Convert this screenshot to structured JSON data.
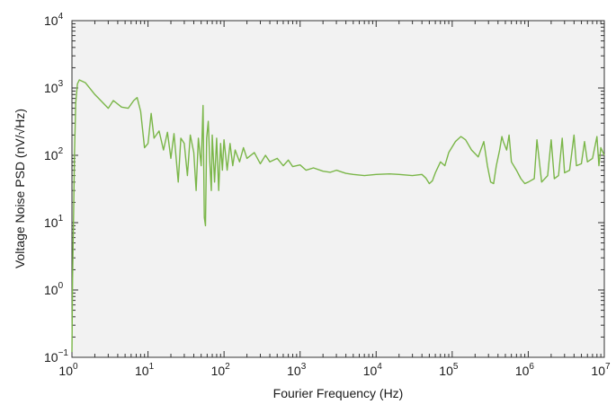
{
  "chart_data": {
    "type": "line",
    "title": "",
    "xlabel": "Fourier Frequency (Hz)",
    "ylabel": "Voltage Noise PSD (nV/√Hz)",
    "x_scale": "log",
    "y_scale": "log",
    "xlim": [
      1,
      10000000
    ],
    "ylim": [
      0.1,
      10000
    ],
    "grid": false,
    "legend": "none",
    "x_tick_labels": [
      {
        "base": "10",
        "exp": "0"
      },
      {
        "base": "10",
        "exp": "1"
      },
      {
        "base": "10",
        "exp": "2"
      },
      {
        "base": "10",
        "exp": "3"
      },
      {
        "base": "10",
        "exp": "4"
      },
      {
        "base": "10",
        "exp": "5"
      },
      {
        "base": "10",
        "exp": "6"
      },
      {
        "base": "10",
        "exp": "7"
      }
    ],
    "y_tick_labels": [
      {
        "base": "10",
        "exp": "−1"
      },
      {
        "base": "10",
        "exp": "0"
      },
      {
        "base": "10",
        "exp": "1"
      },
      {
        "base": "10",
        "exp": "2"
      },
      {
        "base": "10",
        "exp": "3"
      },
      {
        "base": "10",
        "exp": "4"
      }
    ],
    "series": [
      {
        "color": "#7ab648",
        "points": [
          [
            1.0,
            0.12
          ],
          [
            1.02,
            1.5
          ],
          [
            1.05,
            12
          ],
          [
            1.08,
            100
          ],
          [
            1.12,
            600
          ],
          [
            1.18,
            1150
          ],
          [
            1.25,
            1320
          ],
          [
            1.5,
            1200
          ],
          [
            2.0,
            800
          ],
          [
            3.0,
            500
          ],
          [
            3.5,
            650
          ],
          [
            4.5,
            520
          ],
          [
            5.5,
            500
          ],
          [
            6.5,
            650
          ],
          [
            7.2,
            720
          ],
          [
            8.0,
            450
          ],
          [
            9.0,
            130
          ],
          [
            10,
            150
          ],
          [
            11,
            420
          ],
          [
            12,
            180
          ],
          [
            14,
            230
          ],
          [
            16,
            120
          ],
          [
            18,
            220
          ],
          [
            20,
            90
          ],
          [
            22,
            210
          ],
          [
            25,
            40
          ],
          [
            27,
            180
          ],
          [
            30,
            150
          ],
          [
            33,
            50
          ],
          [
            36,
            200
          ],
          [
            40,
            110
          ],
          [
            43,
            30
          ],
          [
            46,
            180
          ],
          [
            50,
            70
          ],
          [
            53,
            550
          ],
          [
            55,
            12
          ],
          [
            57,
            9
          ],
          [
            59,
            180
          ],
          [
            62,
            320
          ],
          [
            65,
            80
          ],
          [
            68,
            30
          ],
          [
            70,
            200
          ],
          [
            75,
            40
          ],
          [
            80,
            180
          ],
          [
            85,
            30
          ],
          [
            90,
            150
          ],
          [
            95,
            60
          ],
          [
            100,
            170
          ],
          [
            110,
            60
          ],
          [
            120,
            150
          ],
          [
            130,
            70
          ],
          [
            140,
            120
          ],
          [
            160,
            80
          ],
          [
            180,
            130
          ],
          [
            200,
            90
          ],
          [
            250,
            110
          ],
          [
            300,
            75
          ],
          [
            350,
            100
          ],
          [
            400,
            80
          ],
          [
            500,
            90
          ],
          [
            600,
            70
          ],
          [
            700,
            85
          ],
          [
            800,
            68
          ],
          [
            1000,
            72
          ],
          [
            1200,
            60
          ],
          [
            1500,
            65
          ],
          [
            2000,
            58
          ],
          [
            2500,
            56
          ],
          [
            3000,
            60
          ],
          [
            4000,
            54
          ],
          [
            5000,
            52
          ],
          [
            7000,
            50
          ],
          [
            10000,
            52
          ],
          [
            15000,
            53
          ],
          [
            20000,
            52
          ],
          [
            30000,
            50
          ],
          [
            40000,
            52
          ],
          [
            45000,
            46
          ],
          [
            50000,
            38
          ],
          [
            55000,
            42
          ],
          [
            60000,
            55
          ],
          [
            70000,
            80
          ],
          [
            80000,
            70
          ],
          [
            90000,
            110
          ],
          [
            110000,
            160
          ],
          [
            130000,
            190
          ],
          [
            150000,
            170
          ],
          [
            180000,
            120
          ],
          [
            220000,
            95
          ],
          [
            260000,
            160
          ],
          [
            290000,
            70
          ],
          [
            320000,
            40
          ],
          [
            350000,
            38
          ],
          [
            380000,
            70
          ],
          [
            420000,
            120
          ],
          [
            450000,
            190
          ],
          [
            470000,
            160
          ],
          [
            520000,
            120
          ],
          [
            560000,
            200
          ],
          [
            600000,
            80
          ],
          [
            700000,
            60
          ],
          [
            800000,
            45
          ],
          [
            900000,
            38
          ],
          [
            1000000,
            40
          ],
          [
            1200000,
            45
          ],
          [
            1300000,
            170
          ],
          [
            1500000,
            40
          ],
          [
            1800000,
            50
          ],
          [
            2000000,
            170
          ],
          [
            2200000,
            45
          ],
          [
            2500000,
            50
          ],
          [
            2800000,
            180
          ],
          [
            3000000,
            55
          ],
          [
            3500000,
            60
          ],
          [
            4000000,
            200
          ],
          [
            4300000,
            70
          ],
          [
            5000000,
            75
          ],
          [
            5500000,
            160
          ],
          [
            6000000,
            80
          ],
          [
            7000000,
            90
          ],
          [
            8000000,
            190
          ],
          [
            8500000,
            70
          ],
          [
            9000000,
            130
          ],
          [
            10000000,
            100
          ]
        ]
      }
    ]
  }
}
